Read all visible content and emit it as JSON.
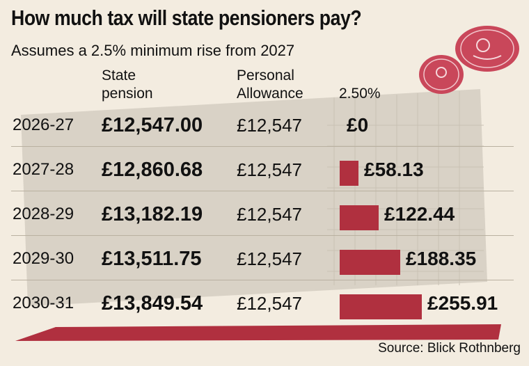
{
  "title": "How much tax will state pensioners pay?",
  "subtitle": "Assumes a 2.5% minimum rise from 2027",
  "headers": {
    "pension_line1": "State",
    "pension_line2": "pension",
    "allowance_line1": "Personal",
    "allowance_line2": "Allowance",
    "tax": "2.50%"
  },
  "rows": [
    {
      "year": "2026-27",
      "pension": "£12,547.00",
      "allowance": "£12,547",
      "tax": "£0"
    },
    {
      "year": "2027-28",
      "pension": "£12,860.68",
      "allowance": "£12,547",
      "tax": "£58.13"
    },
    {
      "year": "2028-29",
      "pension": "£13,182.19",
      "allowance": "£12,547",
      "tax": "£122.44"
    },
    {
      "year": "2029-30",
      "pension": "£13,511.75",
      "allowance": "£12,547",
      "tax": "£188.35"
    },
    {
      "year": "2030-31",
      "pension": "£13,849.54",
      "allowance": "£12,547",
      "tax": "£255.91"
    }
  ],
  "source": "Source: Blick Rothnberg",
  "chart_data": {
    "type": "bar",
    "orientation": "horizontal",
    "categories": [
      "2026-27",
      "2027-28",
      "2028-29",
      "2029-30",
      "2030-31"
    ],
    "values": [
      0,
      58.13,
      122.44,
      188.35,
      255.91
    ]
  },
  "colors": {
    "bar": "#b0303f",
    "background": "#f3ece0"
  }
}
